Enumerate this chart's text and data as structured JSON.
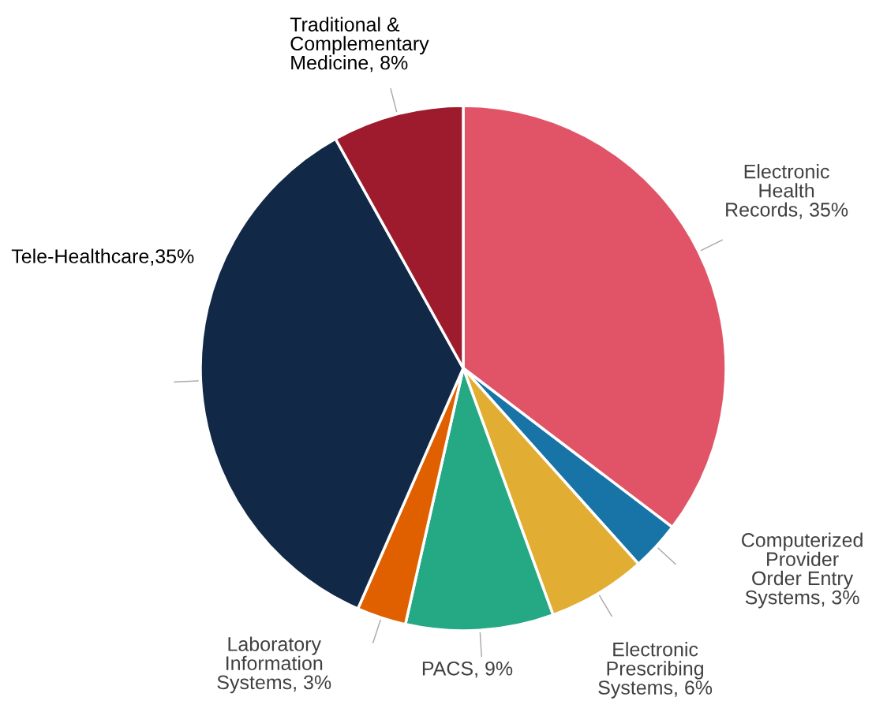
{
  "chart_data": {
    "type": "pie",
    "categories": [
      "Electronic\nHealth\nRecords, 35%",
      "Computerized\nProvider\nOrder Entry\nSystems, 3%",
      "Electronic\nPrescribing\nSystems, 6%",
      "PACS, 9%",
      "Laboratory\nInformation\nSystems, 3%",
      "Tele-Healthcare,35%",
      "Traditional &\nComplementary\nMedicine, 8%"
    ],
    "values": [
      35,
      3,
      6,
      9,
      3,
      35,
      8
    ],
    "colors": [
      "#e15467",
      "#1874a6",
      "#e1ae33",
      "#25a884",
      "#e06000",
      "#112947",
      "#9e1a2d"
    ],
    "legend": false
  }
}
